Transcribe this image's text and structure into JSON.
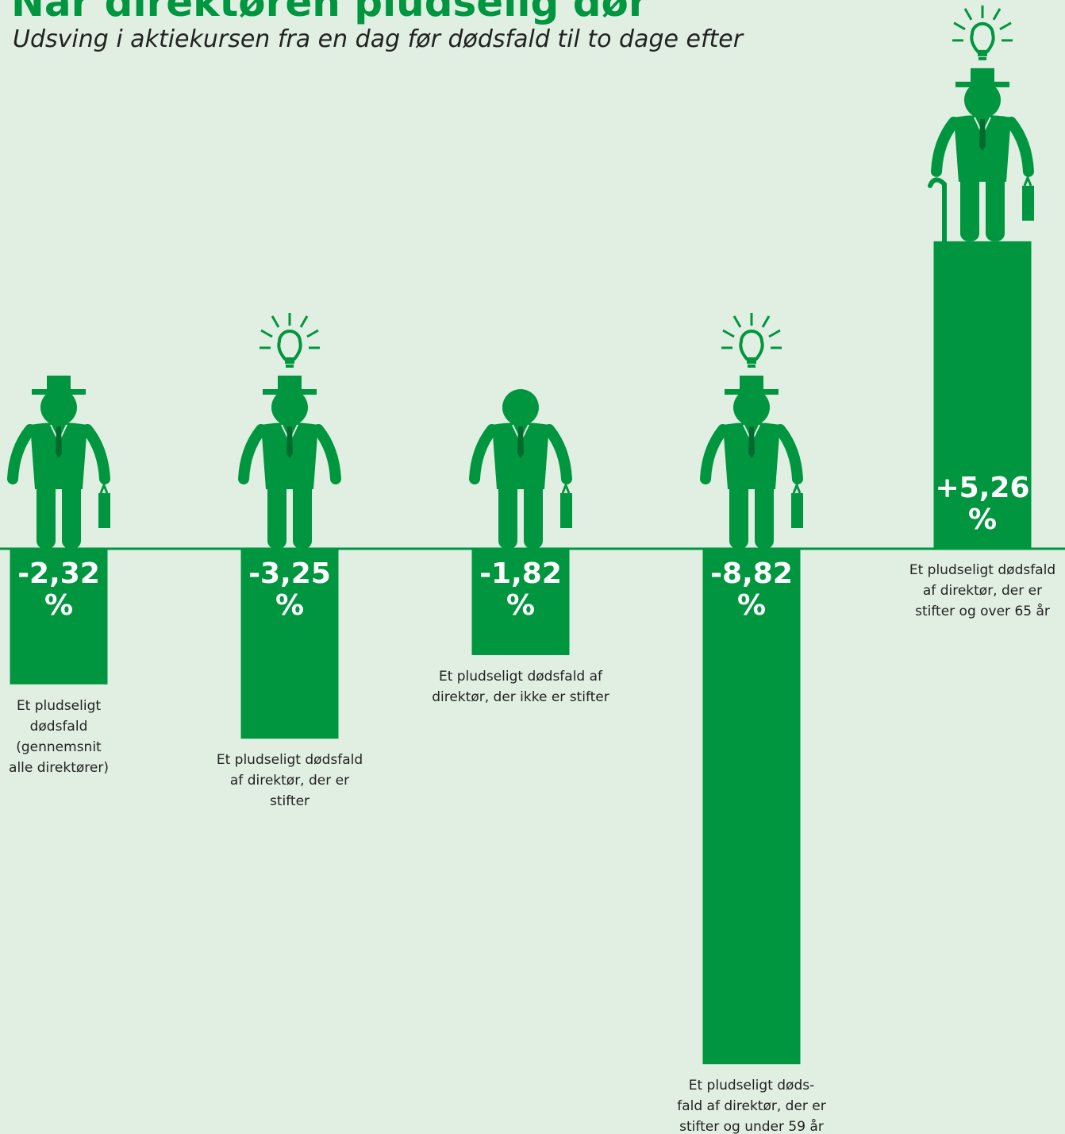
{
  "chart_data": {
    "type": "bar",
    "title": "Når direktøren pludselig dør",
    "subtitle": "Udsving i aktiekursen fra en dag før dødsfald til to dage efter",
    "categories": [
      "Et pludseligt\ndødsfald\n(gennemsnit\nalle direktører)",
      "Et pludseligt dødsfald\naf direktør, der er\nstifter",
      "Et pludseligt dødsfald af\ndirektør, der ikke er stifter",
      "Et pludseligt døds-\nfald af direktør, der er\nstifter og under 59 år",
      "Et pludseligt dødsfald\naf direktør, der er\nstifter og over 65 år"
    ],
    "values": [
      -2.32,
      -3.25,
      -1.82,
      -8.82,
      5.26
    ],
    "value_labels": [
      "-2,32 %",
      "-3,25 %",
      "-1,82 %",
      "-8,82 %",
      "+5,26 %"
    ],
    "color": "#00963f"
  }
}
